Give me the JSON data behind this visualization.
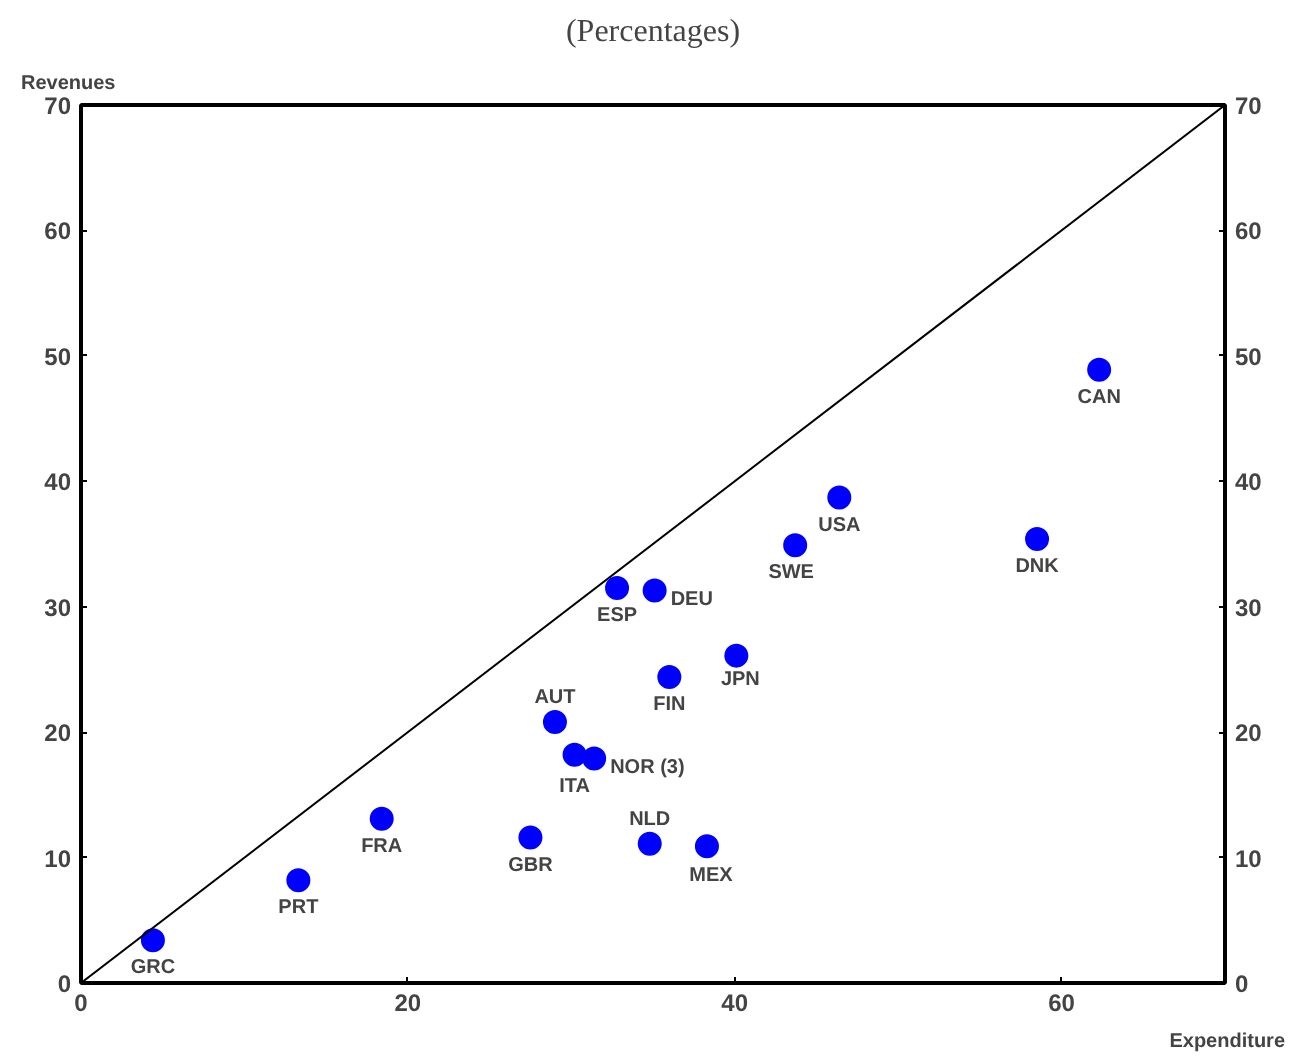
{
  "chart_data": {
    "type": "scatter",
    "title": "(Percentages)",
    "xlabel": "Expenditure",
    "ylabel": "Revenues",
    "xlim": [
      0,
      70
    ],
    "xticks": [
      0,
      20,
      40,
      60
    ],
    "ylim": [
      0,
      70
    ],
    "yticks": [
      0,
      10,
      20,
      30,
      40,
      50,
      60,
      70
    ],
    "y2lim": [
      0,
      70
    ],
    "y2ticks": [
      0,
      10,
      20,
      30,
      40,
      50,
      60,
      70
    ],
    "grid": false,
    "series": [
      {
        "color": "#0000ff",
        "marker": "circle",
        "x": [
          4.4,
          13.3,
          18.4,
          27.5,
          29.0,
          30.2,
          31.4,
          32.8,
          35.1,
          36.0,
          40.1,
          34.8,
          38.3,
          43.7,
          46.4,
          58.5,
          62.3
        ],
        "values": [
          3.4,
          8.2,
          13.1,
          11.6,
          20.8,
          18.2,
          17.9,
          31.5,
          31.3,
          24.4,
          26.1,
          11.1,
          10.9,
          34.9,
          38.7,
          35.4,
          48.9
        ]
      },
      {
        "type": "line",
        "color": "#000000",
        "x": [
          0,
          70
        ],
        "values": [
          0,
          70
        ]
      }
    ],
    "annotations": [
      {
        "text": "GRC",
        "x": 4.4,
        "y": 3.4
      },
      {
        "text": "PRT",
        "x": 13.3,
        "y": 8.2
      },
      {
        "text": "FRA",
        "x": 18.4,
        "y": 13.1
      },
      {
        "text": "GBR",
        "x": 27.5,
        "y": 11.6
      },
      {
        "text": "AUT",
        "x": 29.0,
        "y": 20.8
      },
      {
        "text": "ITA",
        "x": 30.2,
        "y": 18.2
      },
      {
        "text": "NOR (3)",
        "x": 31.4,
        "y": 17.9
      },
      {
        "text": "ESP",
        "x": 32.8,
        "y": 31.5
      },
      {
        "text": "DEU",
        "x": 35.1,
        "y": 31.3
      },
      {
        "text": "FIN",
        "x": 36.0,
        "y": 24.4
      },
      {
        "text": "JPN",
        "x": 40.1,
        "y": 26.1
      },
      {
        "text": "NLD",
        "x": 34.8,
        "y": 11.1
      },
      {
        "text": "MEX",
        "x": 38.3,
        "y": 10.9
      },
      {
        "text": "SWE",
        "x": 43.7,
        "y": 34.9
      },
      {
        "text": "USA",
        "x": 46.4,
        "y": 38.7
      },
      {
        "text": "DNK",
        "x": 58.5,
        "y": 35.4
      },
      {
        "text": "CAN",
        "x": 62.3,
        "y": 48.9
      }
    ]
  }
}
